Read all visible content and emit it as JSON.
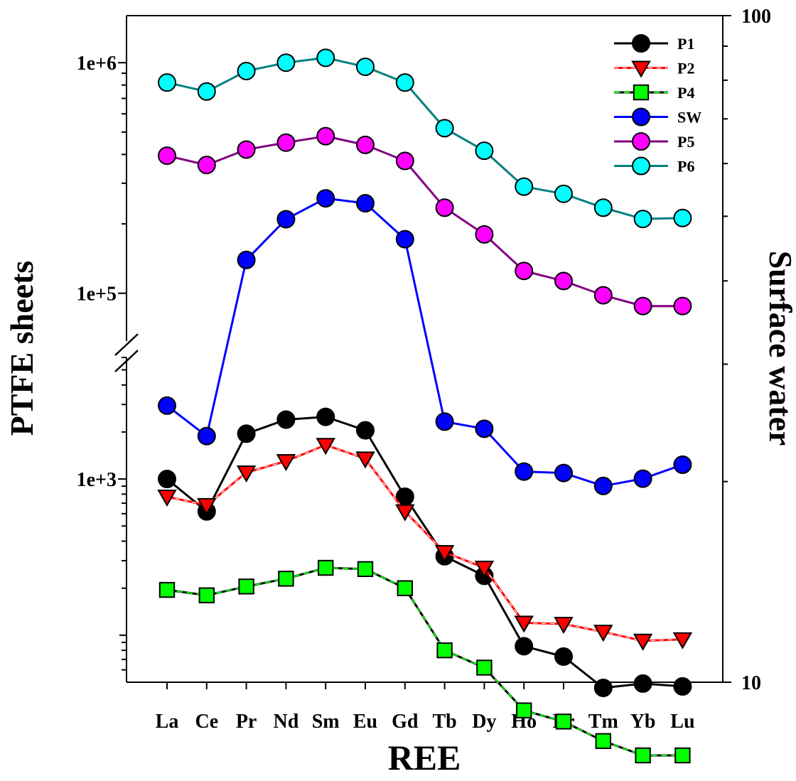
{
  "chart_data": {
    "type": "line",
    "xlabel": "REE",
    "ylabel_left": "PTFE sheets",
    "ylabel_right": "Surface water",
    "left_axis": {
      "scale": "log",
      "broken": true,
      "lower_range": [
        50,
        6000
      ],
      "upper_range": [
        62000,
        1600000
      ],
      "tick_labels": [
        "1e+3",
        "1e+5",
        "1e+6"
      ]
    },
    "right_axis": {
      "scale": "log",
      "range": [
        10,
        100
      ],
      "tick_labels": [
        "10",
        "100"
      ]
    },
    "categories": [
      "La",
      "Ce",
      "Pr",
      "Nd",
      "Sm",
      "Eu",
      "Gd",
      "Tb",
      "Dy",
      "Ho",
      "Er",
      "Tm",
      "Yb",
      "Lu"
    ],
    "legend_position": "top-right",
    "series": [
      {
        "name": "P1",
        "axis": "left",
        "marker": "circle",
        "color": "#000000",
        "line_color": "#000000",
        "dashed": false,
        "values": [
          1000,
          620,
          1950,
          2400,
          2500,
          2050,
          770,
          320,
          240,
          85,
          73,
          46,
          49,
          47
        ]
      },
      {
        "name": "P2",
        "axis": "left",
        "marker": "triangle-down",
        "color": "#ff0000",
        "line_color": "#ff0000",
        "dashed": true,
        "values": [
          770,
          680,
          1100,
          1300,
          1650,
          1350,
          620,
          340,
          270,
          120,
          118,
          105,
          92,
          94
        ]
      },
      {
        "name": "P4",
        "axis": "left",
        "marker": "square",
        "color": "#00ff00",
        "line_color": "#000000",
        "dashed_color": "#00ff00",
        "values": [
          195,
          180,
          205,
          230,
          270,
          265,
          200,
          80,
          62,
          33,
          28,
          21,
          17,
          17
        ]
      },
      {
        "name": "SW",
        "axis": "right",
        "marker": "circle",
        "color": "#0000ff",
        "line_color": "#0000ff",
        "dashed": false,
        "values": [
          26.0,
          23.4,
          43.0,
          49.5,
          53.2,
          52.3,
          46.2,
          24.6,
          24.0,
          20.7,
          20.6,
          19.7,
          20.2,
          21.2
        ]
      },
      {
        "name": "P5",
        "axis": "left",
        "marker": "circle",
        "color": "#ff00ff",
        "line_color": "#800080",
        "dashed": false,
        "values": [
          395000,
          360000,
          420000,
          450000,
          480000,
          440000,
          375000,
          235000,
          180000,
          125000,
          113000,
          98000,
          88000,
          88000
        ]
      },
      {
        "name": "P6",
        "axis": "left",
        "marker": "circle",
        "color": "#00ffff",
        "line_color": "#008080",
        "dashed": false,
        "values": [
          820000,
          750000,
          920000,
          1000000,
          1050000,
          960000,
          820000,
          520000,
          415000,
          290000,
          270000,
          235000,
          210000,
          212000
        ]
      }
    ]
  }
}
